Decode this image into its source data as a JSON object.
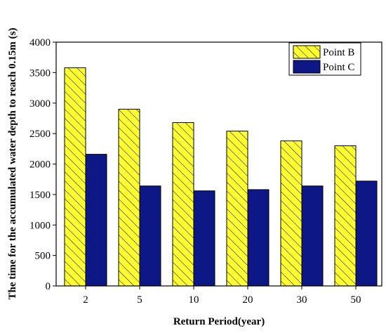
{
  "chart_data": {
    "type": "bar",
    "title": "",
    "xlabel": "Return Period(year)",
    "ylabel": "The time for the accumulated water depth to reach 0.15m (s)",
    "categories": [
      "2",
      "5",
      "10",
      "20",
      "30",
      "50"
    ],
    "series": [
      {
        "name": "Point B",
        "values": [
          3580,
          2900,
          2680,
          2540,
          2380,
          2300
        ],
        "color": "#ffff33",
        "pattern": "diagonal-hatch"
      },
      {
        "name": "Point C",
        "values": [
          2160,
          1640,
          1560,
          1580,
          1640,
          1720
        ],
        "color": "#0d1785",
        "pattern": "solid"
      }
    ],
    "ylim": [
      0,
      4000
    ],
    "yticks": [
      0,
      500,
      1000,
      1500,
      2000,
      2500,
      3000,
      3500,
      4000
    ],
    "grid": false,
    "legend_position": "top-right"
  }
}
